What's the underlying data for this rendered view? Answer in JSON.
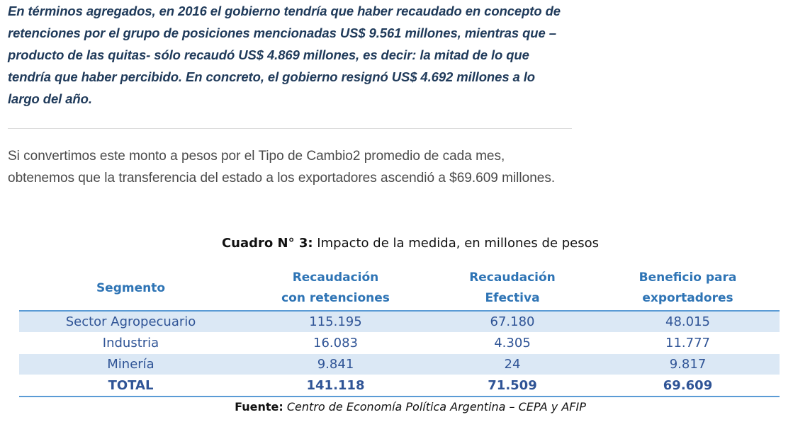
{
  "quote": {
    "text": "En términos agregados, en 2016 el gobierno tendría que haber recaudado en concepto de retenciones por el grupo de posiciones mencionadas US$ 9.561 millones, mientras que –producto de las quitas- sólo recaudó US$ 4.869 millones, es decir: la mitad de lo que tendría que haber percibido. En concreto, el gobierno resignó US$ 4.692 millones a lo largo del año."
  },
  "paragraph": {
    "text": "Si convertimos este monto a pesos por el Tipo de Cambio2 promedio de cada mes, obtenemos que la transferencia del estado a los exportadores ascendió a $69.609 millones."
  },
  "table": {
    "title_lead": "Cuadro N° 3:",
    "title_rest": " Impacto de la medida, en millones de pesos",
    "headers": {
      "segment": "Segmento",
      "col1_line1": "Recaudación",
      "col1_line2": "con retenciones",
      "col2_line1": "Recaudación",
      "col2_line2": "Efectiva",
      "col3_line1": "Beneficio para",
      "col3_line2": "exportadores"
    },
    "rows": [
      {
        "segment": "Sector Agropecuario",
        "con_retenciones": "115.195",
        "efectiva": "67.180",
        "beneficio": "48.015"
      },
      {
        "segment": "Industria",
        "con_retenciones": "16.083",
        "efectiva": "4.305",
        "beneficio": "11.777"
      },
      {
        "segment": "Minería",
        "con_retenciones": "9.841",
        "efectiva": "24",
        "beneficio": "9.817"
      }
    ],
    "total": {
      "segment": "TOTAL",
      "con_retenciones": "141.118",
      "efectiva": "71.509",
      "beneficio": "69.609"
    },
    "source_lead": "Fuente",
    "source_colon": ":",
    "source_text": " Centro de Economía Política Argentina – CEPA y AFIP"
  }
}
